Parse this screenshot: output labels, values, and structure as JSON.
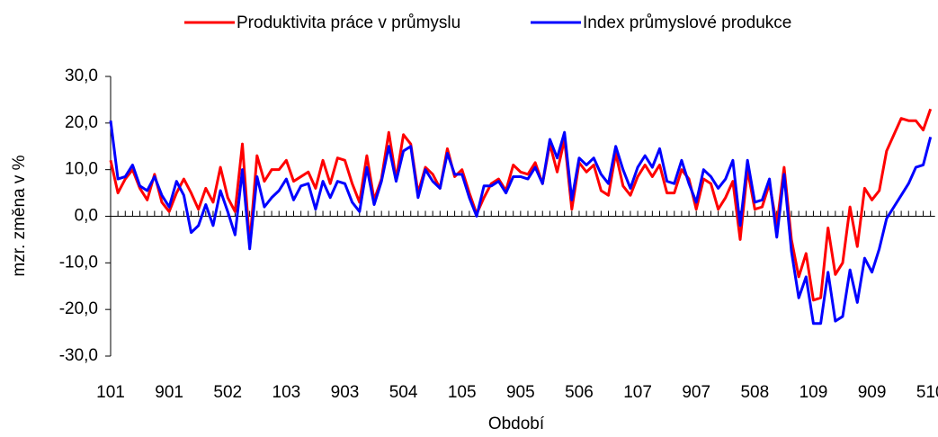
{
  "chart_data": {
    "type": "line",
    "xlabel": "Období",
    "ylabel": "mzr. změna v %",
    "categories": [
      "101",
      null,
      null,
      null,
      null,
      null,
      null,
      null,
      "901",
      null,
      null,
      null,
      null,
      null,
      null,
      null,
      "502",
      null,
      null,
      null,
      null,
      null,
      null,
      null,
      "103",
      null,
      null,
      null,
      null,
      null,
      null,
      null,
      "903",
      null,
      null,
      null,
      null,
      null,
      null,
      null,
      "504",
      null,
      null,
      null,
      null,
      null,
      null,
      null,
      "105",
      null,
      null,
      null,
      null,
      null,
      null,
      null,
      "905",
      null,
      null,
      null,
      null,
      null,
      null,
      null,
      "506",
      null,
      null,
      null,
      null,
      null,
      null,
      null,
      "107",
      null,
      null,
      null,
      null,
      null,
      null,
      null,
      "907",
      null,
      null,
      null,
      null,
      null,
      null,
      null,
      "508",
      null,
      null,
      null,
      null,
      null,
      null,
      null,
      "109",
      null,
      null,
      null,
      null,
      null,
      null,
      null,
      "909",
      null,
      null,
      null,
      null,
      null,
      null,
      null,
      "510"
    ],
    "series": [
      {
        "name": "Produktivita práce v průmyslu",
        "color": "#ff0000",
        "values": [
          12,
          5,
          8,
          10,
          6,
          3.5,
          9,
          3,
          1,
          5,
          8,
          5,
          1.5,
          6,
          3,
          10.5,
          4,
          1,
          15.5,
          -6,
          13,
          7.5,
          10,
          10,
          12,
          7.5,
          8.5,
          9.5,
          6,
          12,
          7,
          12.5,
          12,
          7,
          3,
          13,
          3.5,
          8,
          18,
          8,
          17.5,
          15.5,
          5,
          10.5,
          9,
          6,
          14.5,
          8.5,
          10,
          5,
          0.5,
          4,
          7,
          8,
          5.5,
          11,
          9.5,
          9,
          11.5,
          7,
          15.5,
          9.5,
          16.5,
          1.5,
          11.5,
          9.5,
          11,
          5.5,
          4.5,
          13.5,
          6.5,
          4.5,
          8.5,
          11,
          8.5,
          11,
          5,
          5,
          10,
          8,
          1.5,
          8,
          7,
          1.5,
          4,
          7.5,
          -5,
          10,
          1.5,
          2,
          7,
          -2,
          10.5,
          -5,
          -13,
          -8,
          -18,
          -17.5,
          -2.5,
          -12.5,
          -10,
          2,
          -6.5,
          6,
          3.5,
          5.5,
          14,
          17.5,
          21,
          20.5,
          20.5,
          18.5,
          23
        ]
      },
      {
        "name": "Index průmyslové produkce",
        "color": "#0000ff",
        "values": [
          20.5,
          8,
          8.5,
          11,
          6.5,
          5.5,
          8.5,
          4.5,
          2,
          7.5,
          4.5,
          -3.5,
          -2,
          2.5,
          -2,
          5.5,
          1,
          -4,
          10,
          -7,
          8.5,
          2,
          4,
          5.5,
          8,
          3.5,
          6.5,
          7,
          1.5,
          7.5,
          4,
          7.5,
          7,
          3,
          1,
          10.5,
          2.5,
          7.5,
          15,
          7.5,
          14,
          15,
          4,
          10,
          7.5,
          6,
          13.5,
          9,
          9,
          4,
          0,
          6.5,
          6.5,
          7.5,
          5,
          8.5,
          8.5,
          8,
          10.5,
          7,
          16.5,
          12.5,
          18,
          3.5,
          12.5,
          11,
          12.5,
          9,
          7,
          15,
          10,
          6,
          10.5,
          13,
          10.5,
          14.5,
          7.5,
          7,
          12,
          7,
          3,
          10,
          8.5,
          6,
          8,
          12,
          -2,
          12,
          3,
          3.5,
          8,
          -4.5,
          9,
          -7.5,
          -17.5,
          -13,
          -23,
          -23,
          -12,
          -22.5,
          -21.5,
          -11.5,
          -18.5,
          -9,
          -12,
          -7,
          -0.5,
          2,
          4.5,
          7,
          10.5,
          11,
          17
        ]
      }
    ],
    "ylim": [
      -30,
      30
    ],
    "yticks": [
      {
        "value": -30,
        "label": "-30,0"
      },
      {
        "value": -20,
        "label": "-20,0"
      },
      {
        "value": -10,
        "label": "-10,0"
      },
      {
        "value": 0,
        "label": "0,0"
      },
      {
        "value": 10,
        "label": "10,0"
      },
      {
        "value": 20,
        "label": "20,0"
      },
      {
        "value": 30,
        "label": "30,0"
      }
    ],
    "legend": "top"
  }
}
